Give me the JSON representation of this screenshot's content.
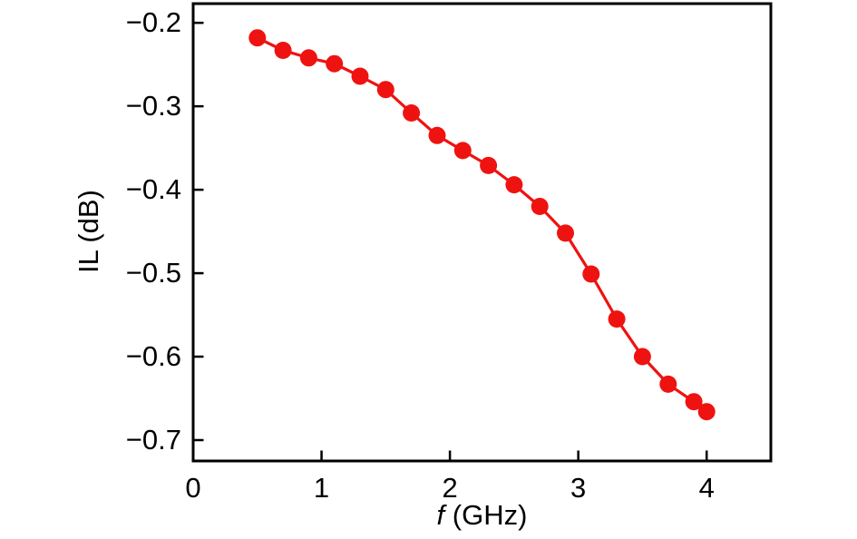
{
  "figure": {
    "background": "#ffffff",
    "axis_color": "#000000",
    "tick_direction": "in",
    "frame": true
  },
  "chart_data": {
    "type": "line",
    "title": "",
    "xlabel": "f (GHz)",
    "xlabel_italic": "f",
    "xlabel_rest": " (GHz)",
    "ylabel": "IL (dB)",
    "xlim": [
      0,
      4.5
    ],
    "ylim": [
      -0.725,
      -0.177
    ],
    "xticks": [
      0,
      1,
      2,
      3,
      4
    ],
    "xtick_labels": [
      "0",
      "1",
      "2",
      "3",
      "4"
    ],
    "yticks": [
      -0.2,
      -0.3,
      -0.4,
      -0.5,
      -0.6,
      -0.7
    ],
    "ytick_labels": [
      "−0.2",
      "−0.3",
      "−0.4",
      "−0.5",
      "−0.6",
      "−0.7"
    ],
    "grid": false,
    "legend": null,
    "series": [
      {
        "name": "IL",
        "color": "#ee1311",
        "marker": "circle",
        "x": [
          0.5,
          0.7,
          0.9,
          1.1,
          1.3,
          1.5,
          1.7,
          1.9,
          2.1,
          2.3,
          2.5,
          2.7,
          2.9,
          3.1,
          3.3,
          3.5,
          3.7,
          3.9,
          4.0
        ],
        "y": [
          -0.218,
          -0.233,
          -0.242,
          -0.249,
          -0.264,
          -0.28,
          -0.308,
          -0.335,
          -0.353,
          -0.371,
          -0.394,
          -0.42,
          -0.452,
          -0.501,
          -0.555,
          -0.6,
          -0.633,
          -0.654,
          -0.666
        ]
      }
    ]
  }
}
